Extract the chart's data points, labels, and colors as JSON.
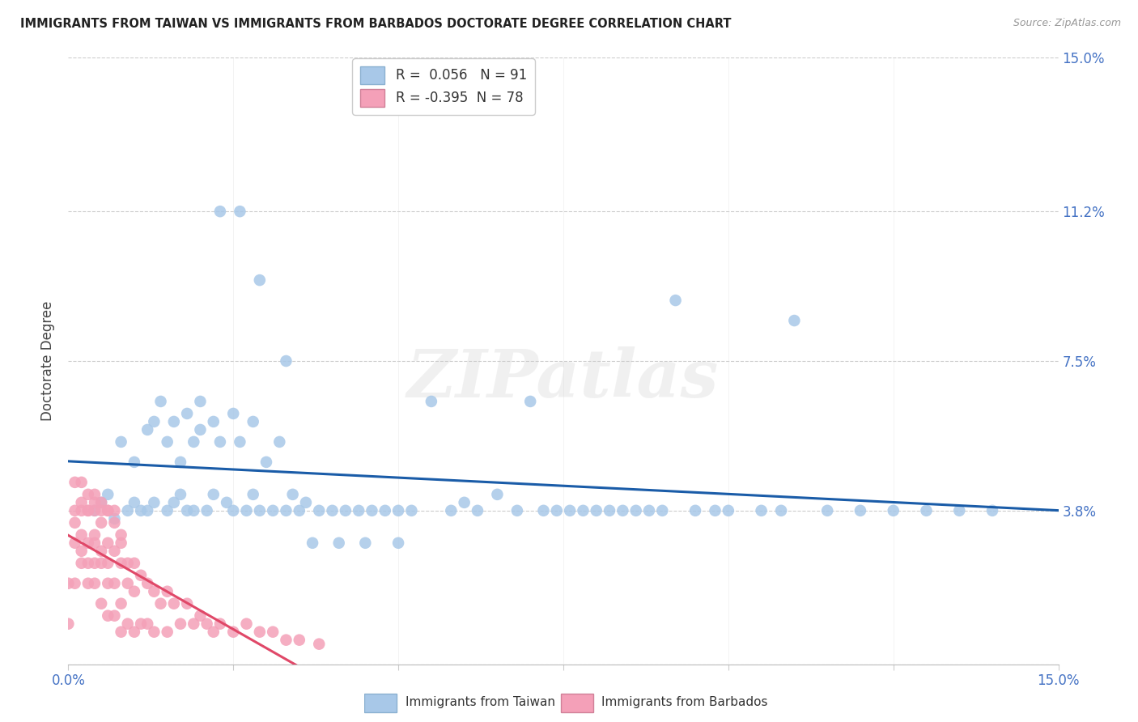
{
  "title": "IMMIGRANTS FROM TAIWAN VS IMMIGRANTS FROM BARBADOS DOCTORATE DEGREE CORRELATION CHART",
  "source": "Source: ZipAtlas.com",
  "ylabel": "Doctorate Degree",
  "xlim": [
    0.0,
    0.15
  ],
  "ylim": [
    0.0,
    0.15
  ],
  "ytick_positions": [
    0.0,
    0.038,
    0.075,
    0.112,
    0.15
  ],
  "ytick_labels": [
    "",
    "3.8%",
    "7.5%",
    "11.2%",
    "15.0%"
  ],
  "taiwan_color": "#a8c8e8",
  "barbados_color": "#f4a0b8",
  "taiwan_line_color": "#1a5ca8",
  "barbados_line_color": "#e04868",
  "taiwan_R": 0.056,
  "taiwan_N": 91,
  "barbados_R": -0.395,
  "barbados_N": 78,
  "watermark_text": "ZIPatlas",
  "taiwan_x": [
    0.004,
    0.005,
    0.006,
    0.007,
    0.008,
    0.009,
    0.01,
    0.01,
    0.011,
    0.012,
    0.012,
    0.013,
    0.013,
    0.014,
    0.015,
    0.015,
    0.016,
    0.016,
    0.017,
    0.017,
    0.018,
    0.018,
    0.019,
    0.019,
    0.02,
    0.02,
    0.021,
    0.022,
    0.022,
    0.023,
    0.024,
    0.025,
    0.025,
    0.026,
    0.027,
    0.028,
    0.028,
    0.029,
    0.03,
    0.031,
    0.032,
    0.033,
    0.034,
    0.035,
    0.036,
    0.038,
    0.04,
    0.042,
    0.044,
    0.046,
    0.048,
    0.05,
    0.052,
    0.055,
    0.058,
    0.06,
    0.062,
    0.065,
    0.068,
    0.07,
    0.072,
    0.074,
    0.076,
    0.078,
    0.08,
    0.082,
    0.084,
    0.086,
    0.088,
    0.09,
    0.092,
    0.095,
    0.098,
    0.1,
    0.105,
    0.108,
    0.11,
    0.115,
    0.12,
    0.125,
    0.13,
    0.135,
    0.14,
    0.023,
    0.026,
    0.029,
    0.033,
    0.037,
    0.041,
    0.045,
    0.05
  ],
  "taiwan_y": [
    0.038,
    0.04,
    0.042,
    0.036,
    0.055,
    0.038,
    0.04,
    0.05,
    0.038,
    0.038,
    0.058,
    0.06,
    0.04,
    0.065,
    0.038,
    0.055,
    0.06,
    0.04,
    0.05,
    0.042,
    0.062,
    0.038,
    0.055,
    0.038,
    0.065,
    0.058,
    0.038,
    0.042,
    0.06,
    0.055,
    0.04,
    0.038,
    0.062,
    0.055,
    0.038,
    0.042,
    0.06,
    0.038,
    0.05,
    0.038,
    0.055,
    0.038,
    0.042,
    0.038,
    0.04,
    0.038,
    0.038,
    0.038,
    0.038,
    0.038,
    0.038,
    0.038,
    0.038,
    0.065,
    0.038,
    0.04,
    0.038,
    0.042,
    0.038,
    0.065,
    0.038,
    0.038,
    0.038,
    0.038,
    0.038,
    0.038,
    0.038,
    0.038,
    0.038,
    0.038,
    0.09,
    0.038,
    0.038,
    0.038,
    0.038,
    0.038,
    0.085,
    0.038,
    0.038,
    0.038,
    0.038,
    0.038,
    0.038,
    0.112,
    0.112,
    0.095,
    0.075,
    0.03,
    0.03,
    0.03,
    0.03
  ],
  "barbados_x": [
    0.0,
    0.0,
    0.001,
    0.001,
    0.001,
    0.001,
    0.002,
    0.002,
    0.002,
    0.002,
    0.002,
    0.003,
    0.003,
    0.003,
    0.003,
    0.003,
    0.004,
    0.004,
    0.004,
    0.004,
    0.004,
    0.004,
    0.005,
    0.005,
    0.005,
    0.005,
    0.005,
    0.006,
    0.006,
    0.006,
    0.006,
    0.006,
    0.007,
    0.007,
    0.007,
    0.007,
    0.008,
    0.008,
    0.008,
    0.008,
    0.009,
    0.009,
    0.009,
    0.01,
    0.01,
    0.01,
    0.011,
    0.011,
    0.012,
    0.012,
    0.013,
    0.013,
    0.014,
    0.015,
    0.015,
    0.016,
    0.017,
    0.018,
    0.019,
    0.02,
    0.021,
    0.022,
    0.023,
    0.025,
    0.027,
    0.029,
    0.031,
    0.033,
    0.035,
    0.038,
    0.001,
    0.002,
    0.003,
    0.004,
    0.005,
    0.006,
    0.007,
    0.008
  ],
  "barbados_y": [
    0.01,
    0.02,
    0.035,
    0.02,
    0.03,
    0.038,
    0.025,
    0.032,
    0.038,
    0.028,
    0.04,
    0.03,
    0.038,
    0.025,
    0.038,
    0.02,
    0.03,
    0.038,
    0.025,
    0.032,
    0.04,
    0.02,
    0.028,
    0.035,
    0.025,
    0.038,
    0.015,
    0.03,
    0.038,
    0.025,
    0.02,
    0.012,
    0.028,
    0.035,
    0.02,
    0.012,
    0.03,
    0.025,
    0.015,
    0.008,
    0.025,
    0.02,
    0.01,
    0.025,
    0.018,
    0.008,
    0.022,
    0.01,
    0.02,
    0.01,
    0.018,
    0.008,
    0.015,
    0.018,
    0.008,
    0.015,
    0.01,
    0.015,
    0.01,
    0.012,
    0.01,
    0.008,
    0.01,
    0.008,
    0.01,
    0.008,
    0.008,
    0.006,
    0.006,
    0.005,
    0.045,
    0.045,
    0.042,
    0.042,
    0.04,
    0.038,
    0.038,
    0.032
  ]
}
